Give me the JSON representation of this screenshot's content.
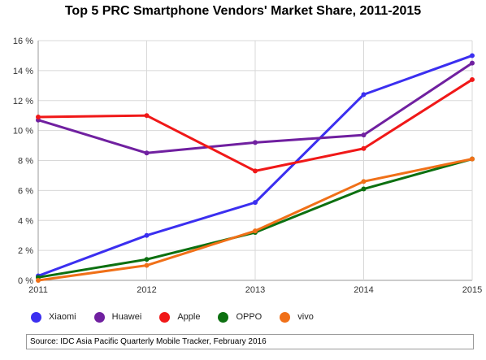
{
  "chart_data": {
    "type": "line",
    "title": "Top 5 PRC Smartphone Vendors' Market Share, 2011-2015",
    "xlabel": "",
    "ylabel": "",
    "categories": [
      "2011",
      "2012",
      "2013",
      "2014",
      "2015"
    ],
    "y_ticks": [
      "0 %",
      "2 %",
      "4 %",
      "6 %",
      "8 %",
      "10 %",
      "12 %",
      "14 %",
      "16 %"
    ],
    "ylim": [
      0,
      16
    ],
    "grid": true,
    "legend_position": "bottom",
    "series": [
      {
        "name": "Xiaomi",
        "color": "#3b2ff0",
        "values": [
          0.3,
          3.0,
          5.2,
          12.4,
          15.0
        ]
      },
      {
        "name": "Huawei",
        "color": "#7020a0",
        "values": [
          10.7,
          8.5,
          9.2,
          9.7,
          14.5
        ]
      },
      {
        "name": "Apple",
        "color": "#f01818",
        "values": [
          10.9,
          11.0,
          7.3,
          8.8,
          13.4
        ]
      },
      {
        "name": "OPPO",
        "color": "#0c7010",
        "values": [
          0.2,
          1.4,
          3.2,
          6.1,
          8.1
        ]
      },
      {
        "name": "vivo",
        "color": "#f07018",
        "values": [
          0.0,
          1.0,
          3.3,
          6.6,
          8.1
        ]
      }
    ]
  },
  "source_text": "Source:  IDC Asia Pacific Quarterly Mobile Tracker,  February 2016",
  "colors": {
    "grid": "#d8d8d8",
    "axis": "#999999"
  }
}
